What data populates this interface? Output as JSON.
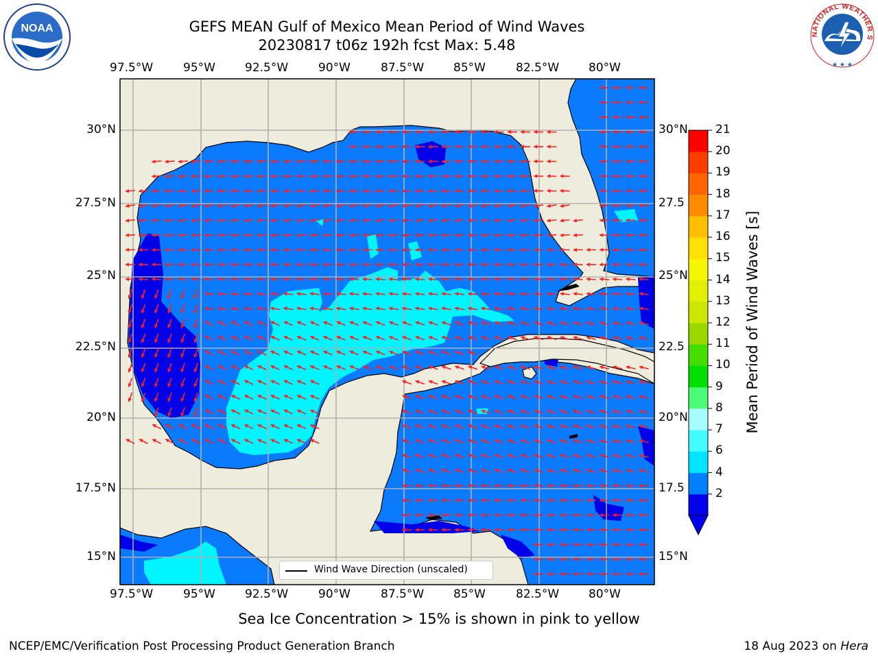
{
  "title_line1": "GEFS MEAN Gulf of Mexico Mean Period of Wind Waves",
  "title_line2": "20230817 t06z 192h fcst   Max: 5.48",
  "lon_ticks": [
    "97.5°W",
    "95°W",
    "92.5°W",
    "90°W",
    "87.5°W",
    "85°W",
    "82.5°W",
    "80°W"
  ],
  "lat_ticks_left": [
    "30°N",
    "27.5°N",
    "25°N",
    "22.5°N",
    "20°N",
    "17.5°N",
    "15°N"
  ],
  "lat_ticks_right": [
    "30°N",
    "27.5",
    "25°N",
    "22.5",
    "20°N",
    "17.5",
    "15°N"
  ],
  "colorbar": {
    "label": "Mean Period of Wind Waves [s]",
    "ticks": [
      "21",
      "20",
      "19",
      "18",
      "17",
      "16",
      "15",
      "14",
      "13",
      "12",
      "11",
      "10",
      "9",
      "8",
      "7",
      "6",
      "4",
      "2"
    ],
    "colors": [
      "#0000ee",
      "#0080ff",
      "#00e5ff",
      "#44fbff",
      "#a7fdff",
      "#4dfd7a",
      "#00e000",
      "#44dd00",
      "#9ad800",
      "#cce800",
      "#e0f000",
      "#f6f600",
      "#ffe000",
      "#ffbf00",
      "#ff8c00",
      "#ff6400",
      "#ff3c00",
      "#ff0000"
    ]
  },
  "legend": {
    "label": "Wind Wave Direction (unscaled)"
  },
  "sea_ice_note": "Sea Ice Concentration > 15% is shown in pink to yellow",
  "footer_left": "NCEP/EMC/Verification Post Processing Product Generation Branch",
  "footer_right_prefix": "18 Aug 2023 on ",
  "footer_right_host": "Hera",
  "logos": {
    "left": "NOAA",
    "right": "NATIONAL WEATHER SERVICE"
  },
  "map_colors": {
    "land": "#eeecdc",
    "ocean": "#0a7aff",
    "deep": "#0000e8",
    "shallow": "#00f5ff",
    "arrow": "#ff1e1e",
    "grid": "#b0b0b0"
  }
}
